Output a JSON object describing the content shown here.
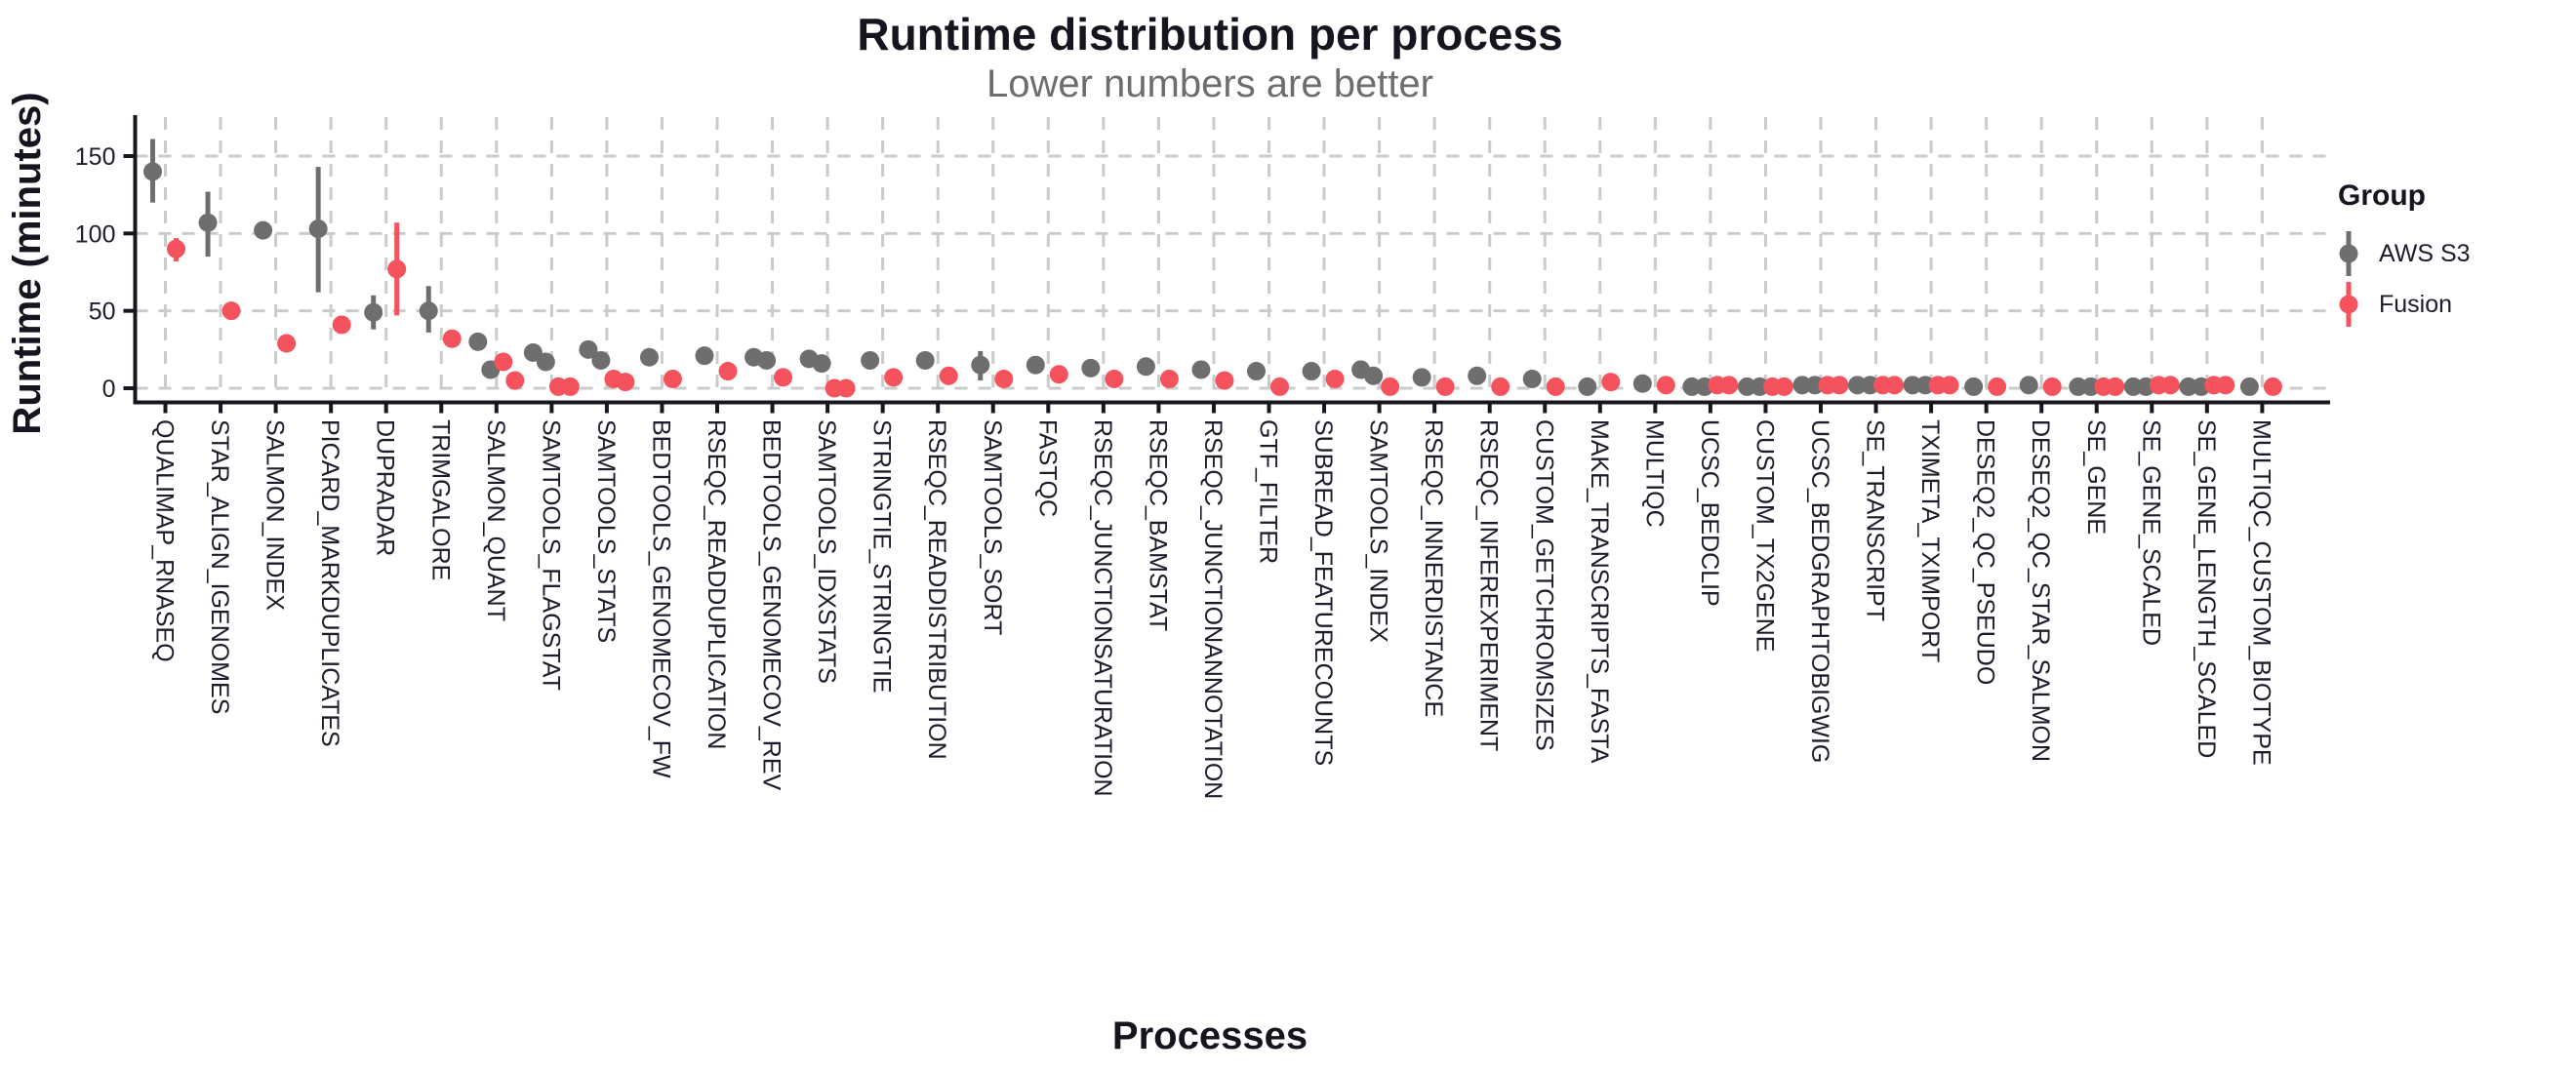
{
  "header": {
    "title": "Runtime distribution per process",
    "subtitle": "Lower numbers are better"
  },
  "legend": {
    "title": "Group",
    "entries": [
      {
        "label": "AWS S3",
        "color": "#6E6E6E"
      },
      {
        "label": "Fusion",
        "color": "#F4525D"
      }
    ]
  },
  "colors": {
    "aws": "#6E6E6E",
    "fusion": "#F4525D",
    "grid": "#CBCBCB",
    "axis": "#16161F",
    "tick_text": "#1C1C2B",
    "title_text": "#15151F",
    "subtitle_text": "#6D6D6D"
  },
  "chart_data": {
    "type": "scatter",
    "title": "Runtime distribution per process",
    "subtitle": "Lower numbers are better",
    "xlabel": "Processes",
    "ylabel": "Runtime (minutes)",
    "ylim": [
      0,
      165
    ],
    "yticks": [
      0,
      50,
      100,
      150
    ],
    "grid": true,
    "legend_position": "right",
    "units": "minutes",
    "series": [
      {
        "name": "AWS S3",
        "color": "#6E6E6E"
      },
      {
        "name": "Fusion",
        "color": "#F4525D"
      }
    ],
    "categories": [
      "QUALIMAP_RNASEQ",
      "STAR_ALIGN_IGENOMES",
      "SALMON_INDEX",
      "PICARD_MARKDUPLICATES",
      "DUPRADAR",
      "TRIMGALORE",
      "SALMON_QUANT",
      "SAMTOOLS_FLAGSTAT",
      "SAMTOOLS_STATS",
      "BEDTOOLS_GENOMECOV_FW",
      "RSEQC_READDUPLICATION",
      "BEDTOOLS_GENOMECOV_REV",
      "SAMTOOLS_IDXSTATS",
      "STRINGTIE_STRINGTIE",
      "RSEQC_READDISTRIBUTION",
      "SAMTOOLS_SORT",
      "FASTQC",
      "RSEQC_JUNCTIONSATURATION",
      "RSEQC_BAMSTAT",
      "RSEQC_JUNCTIONANNOTATION",
      "GTF_FILTER",
      "SUBREAD_FEATURECOUNTS",
      "SAMTOOLS_INDEX",
      "RSEQC_INNERDISTANCE",
      "RSEQC_INFEREXPERIMENT",
      "CUSTOM_GETCHROMSIZES",
      "MAKE_TRANSCRIPTS_FASTA",
      "MULTIQC",
      "UCSC_BEDCLIP",
      "CUSTOM_TX2GENE",
      "UCSC_BEDGRAPHTOBIGWIG",
      "SE_TRANSCRIPT",
      "TXIMETA_TXIMPORT",
      "DESEQ2_QC_PSEUDO",
      "DESEQ2_QC_STAR_SALMON",
      "SE_GENE",
      "SE_GENE_SCALED",
      "SE_GENE_LENGTH_SCALED",
      "MULTIQC_CUSTOM_BIOTYPE"
    ],
    "points": [
      {
        "process": "QUALIMAP_RNASEQ",
        "aws": [
          140
        ],
        "aws_range": [
          120,
          161
        ],
        "fusion": [
          90
        ],
        "fusion_range": [
          82,
          97
        ]
      },
      {
        "process": "STAR_ALIGN_IGENOMES",
        "aws": [
          107
        ],
        "aws_range": [
          85,
          127
        ],
        "fusion": [
          50
        ]
      },
      {
        "process": "SALMON_INDEX",
        "aws": [
          102
        ],
        "fusion": [
          29
        ]
      },
      {
        "process": "PICARD_MARKDUPLICATES",
        "aws": [
          103
        ],
        "aws_range": [
          62,
          143
        ],
        "fusion": [
          41
        ]
      },
      {
        "process": "DUPRADAR",
        "aws": [
          49
        ],
        "aws_range": [
          38,
          60
        ],
        "fusion": [
          77
        ],
        "fusion_range": [
          47,
          107
        ]
      },
      {
        "process": "TRIMGALORE",
        "aws": [
          50
        ],
        "aws_range": [
          36,
          66
        ],
        "fusion": [
          32
        ]
      },
      {
        "process": "SALMON_QUANT",
        "aws": [
          30,
          12
        ],
        "fusion": [
          17,
          5
        ]
      },
      {
        "process": "SAMTOOLS_FLAGSTAT",
        "aws": [
          23,
          17
        ],
        "fusion": [
          1,
          1
        ]
      },
      {
        "process": "SAMTOOLS_STATS",
        "aws": [
          25,
          18
        ],
        "fusion": [
          6,
          4
        ]
      },
      {
        "process": "BEDTOOLS_GENOMECOV_FW",
        "aws": [
          20
        ],
        "fusion": [
          6
        ]
      },
      {
        "process": "RSEQC_READDUPLICATION",
        "aws": [
          21
        ],
        "fusion": [
          11
        ]
      },
      {
        "process": "BEDTOOLS_GENOMECOV_REV",
        "aws": [
          20,
          18
        ],
        "fusion": [
          7
        ]
      },
      {
        "process": "SAMTOOLS_IDXSTATS",
        "aws": [
          19,
          16
        ],
        "fusion": [
          0,
          0
        ]
      },
      {
        "process": "STRINGTIE_STRINGTIE",
        "aws": [
          18
        ],
        "fusion": [
          7
        ]
      },
      {
        "process": "RSEQC_READDISTRIBUTION",
        "aws": [
          18
        ],
        "fusion": [
          8
        ]
      },
      {
        "process": "SAMTOOLS_SORT",
        "aws": [
          15
        ],
        "aws_range": [
          5,
          24
        ],
        "fusion": [
          6
        ]
      },
      {
        "process": "FASTQC",
        "aws": [
          15
        ],
        "fusion": [
          9
        ]
      },
      {
        "process": "RSEQC_JUNCTIONSATURATION",
        "aws": [
          13
        ],
        "fusion": [
          6
        ]
      },
      {
        "process": "RSEQC_BAMSTAT",
        "aws": [
          14
        ],
        "fusion": [
          6
        ]
      },
      {
        "process": "RSEQC_JUNCTIONANNOTATION",
        "aws": [
          12
        ],
        "fusion": [
          5
        ]
      },
      {
        "process": "GTF_FILTER",
        "aws": [
          11
        ],
        "fusion": [
          1
        ]
      },
      {
        "process": "SUBREAD_FEATURECOUNTS",
        "aws": [
          11
        ],
        "fusion": [
          6
        ]
      },
      {
        "process": "SAMTOOLS_INDEX",
        "aws": [
          12,
          8
        ],
        "fusion": [
          1
        ]
      },
      {
        "process": "RSEQC_INNERDISTANCE",
        "aws": [
          7
        ],
        "fusion": [
          1
        ]
      },
      {
        "process": "RSEQC_INFEREXPERIMENT",
        "aws": [
          8
        ],
        "fusion": [
          1
        ]
      },
      {
        "process": "CUSTOM_GETCHROMSIZES",
        "aws": [
          6
        ],
        "fusion": [
          1
        ]
      },
      {
        "process": "MAKE_TRANSCRIPTS_FASTA",
        "aws": [
          1
        ],
        "fusion": [
          4
        ]
      },
      {
        "process": "MULTIQC",
        "aws": [
          3
        ],
        "fusion": [
          2
        ]
      },
      {
        "process": "UCSC_BEDCLIP",
        "aws": [
          1,
          1
        ],
        "fusion": [
          2,
          2
        ]
      },
      {
        "process": "CUSTOM_TX2GENE",
        "aws": [
          1,
          1
        ],
        "fusion": [
          1,
          1
        ]
      },
      {
        "process": "UCSC_BEDGRAPHTOBIGWIG",
        "aws": [
          2,
          2
        ],
        "fusion": [
          2,
          2
        ]
      },
      {
        "process": "SE_TRANSCRIPT",
        "aws": [
          2,
          2
        ],
        "fusion": [
          2,
          2
        ]
      },
      {
        "process": "TXIMETA_TXIMPORT",
        "aws": [
          2,
          2
        ],
        "fusion": [
          2,
          2
        ]
      },
      {
        "process": "DESEQ2_QC_PSEUDO",
        "aws": [
          1
        ],
        "fusion": [
          1
        ]
      },
      {
        "process": "DESEQ2_QC_STAR_SALMON",
        "aws": [
          2
        ],
        "fusion": [
          1
        ]
      },
      {
        "process": "SE_GENE",
        "aws": [
          1,
          1
        ],
        "fusion": [
          1,
          1
        ]
      },
      {
        "process": "SE_GENE_SCALED",
        "aws": [
          1,
          1
        ],
        "fusion": [
          2,
          2
        ]
      },
      {
        "process": "SE_GENE_LENGTH_SCALED",
        "aws": [
          1,
          1
        ],
        "fusion": [
          2,
          2
        ]
      },
      {
        "process": "MULTIQC_CUSTOM_BIOTYPE",
        "aws": [
          1
        ],
        "fusion": [
          1
        ]
      }
    ]
  }
}
